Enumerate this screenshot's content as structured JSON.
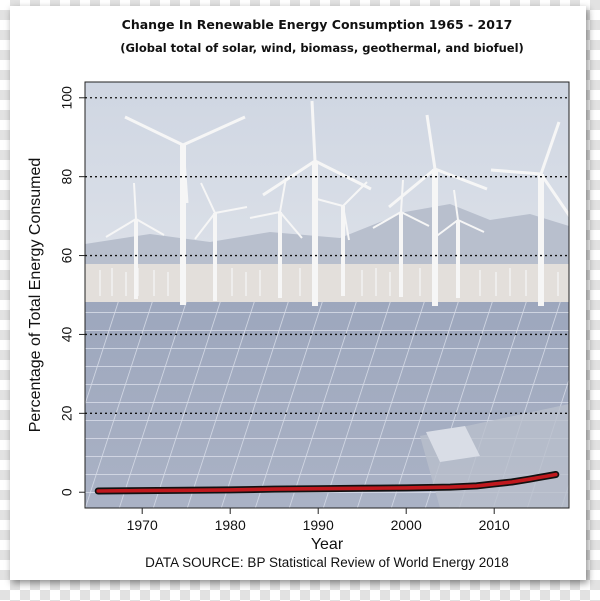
{
  "chart_data": {
    "type": "line",
    "title": "Change In Renewable Energy Consumption 1965 - 2017",
    "subtitle": "(Global total of solar, wind, biomass, geothermal, and biofuel)",
    "xlabel": "Year",
    "ylabel": "Percentage of Total Energy Consumed",
    "source": "DATA SOURCE: BP Statistical Review of World Energy 2018",
    "xlim": [
      1963.5,
      2018.5
    ],
    "ylim": [
      -4,
      104
    ],
    "x_ticks": [
      1970,
      1980,
      1990,
      2000,
      2010
    ],
    "y_ticks": [
      0,
      20,
      40,
      60,
      80,
      100
    ],
    "grid": "horizontal dotted",
    "background": "photo of wind turbines and solar panels",
    "series_color": "#c0181d",
    "x": [
      1965,
      1970,
      1975,
      1980,
      1985,
      1990,
      1995,
      2000,
      2005,
      2008,
      2010,
      2012,
      2014,
      2015,
      2016,
      2017
    ],
    "values": [
      0.3,
      0.4,
      0.5,
      0.6,
      0.8,
      0.9,
      1.0,
      1.1,
      1.3,
      1.6,
      2.1,
      2.6,
      3.3,
      3.7,
      4.1,
      4.5
    ]
  }
}
